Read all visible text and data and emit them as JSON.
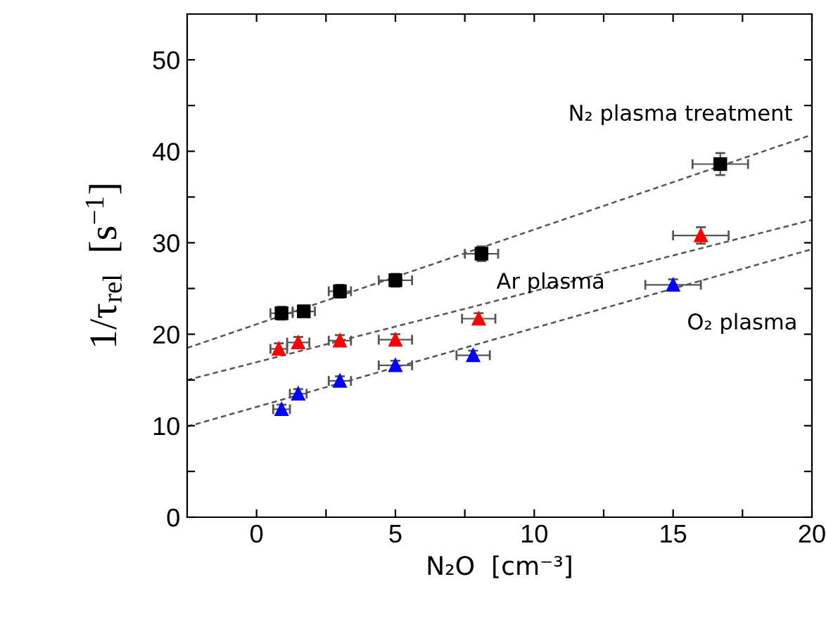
{
  "chart_data": {
    "type": "scatter",
    "xlabel": "N₂O  [cm⁻³]",
    "ylabel": "1/τ$_{rel}$  [s$^{−1}$]",
    "xlim": [
      -2.5,
      20
    ],
    "ylim": [
      0,
      55
    ],
    "xticks": [
      0,
      {
        "value": 2.5,
        "label": null
      },
      5,
      {
        "value": 7.5,
        "label": null
      },
      10,
      {
        "value": 12.5,
        "label": null
      },
      15,
      {
        "value": 17.5,
        "label": null
      },
      20
    ],
    "yticks": [
      0,
      {
        "value": 5,
        "label": null
      },
      10,
      {
        "value": 15,
        "label": null
      },
      20,
      {
        "value": 25,
        "label": null
      },
      30,
      {
        "value": 35,
        "label": null
      },
      40,
      {
        "value": 45,
        "label": null
      },
      50
    ],
    "grid": false,
    "legend": false,
    "series": [
      {
        "color": "#000000",
        "marker": "square",
        "x": [
          0.9,
          1.7,
          3.0,
          5.0,
          8.1,
          16.7
        ],
        "values": [
          22.3,
          22.5,
          24.7,
          25.9,
          28.8,
          38.6
        ],
        "errors": [
          0.7,
          0.6,
          0.7,
          0.7,
          0.8,
          1.2
        ],
        "xerrors": [
          0.4,
          0.4,
          0.4,
          0.6,
          0.6,
          1.0
        ]
      },
      {
        "color": "#ff0000",
        "marker": "triangle",
        "x": [
          0.8,
          1.5,
          3.0,
          5.0,
          8.0,
          16.0
        ],
        "values": [
          18.4,
          19.1,
          19.3,
          19.4,
          21.7,
          30.8
        ],
        "errors": [
          0.6,
          0.6,
          0.6,
          0.6,
          0.6,
          0.9
        ],
        "xerrors": [
          0.3,
          0.4,
          0.4,
          0.6,
          0.6,
          1.0
        ]
      },
      {
        "color": "#0000ff",
        "marker": "triangle",
        "x": [
          0.9,
          1.5,
          3.0,
          5.0,
          7.8,
          15.0
        ],
        "values": [
          11.8,
          13.5,
          14.9,
          16.6,
          17.7,
          25.4
        ],
        "errors": [
          0.5,
          0.5,
          0.5,
          0.5,
          0.5,
          0.6
        ],
        "xerrors": [
          0.3,
          0.3,
          0.4,
          0.6,
          0.6,
          1.0
        ]
      },
      {
        "type": "line",
        "color": "#555555",
        "line_style": "dashed",
        "x": [
          -2.5,
          20
        ],
        "values": [
          18.5,
          41.8
        ]
      },
      {
        "type": "line",
        "color": "#555555",
        "line_style": "dashed",
        "x": [
          -2.5,
          20
        ],
        "values": [
          15.0,
          32.5
        ]
      },
      {
        "type": "line",
        "color": "#555555",
        "line_style": "dashed",
        "x": [
          -2.5,
          20
        ],
        "values": [
          9.9,
          29.3
        ]
      }
    ],
    "annotations": [
      "N₂ plasma treatment",
      "Ar plasma",
      "O₂ plasma"
    ]
  }
}
